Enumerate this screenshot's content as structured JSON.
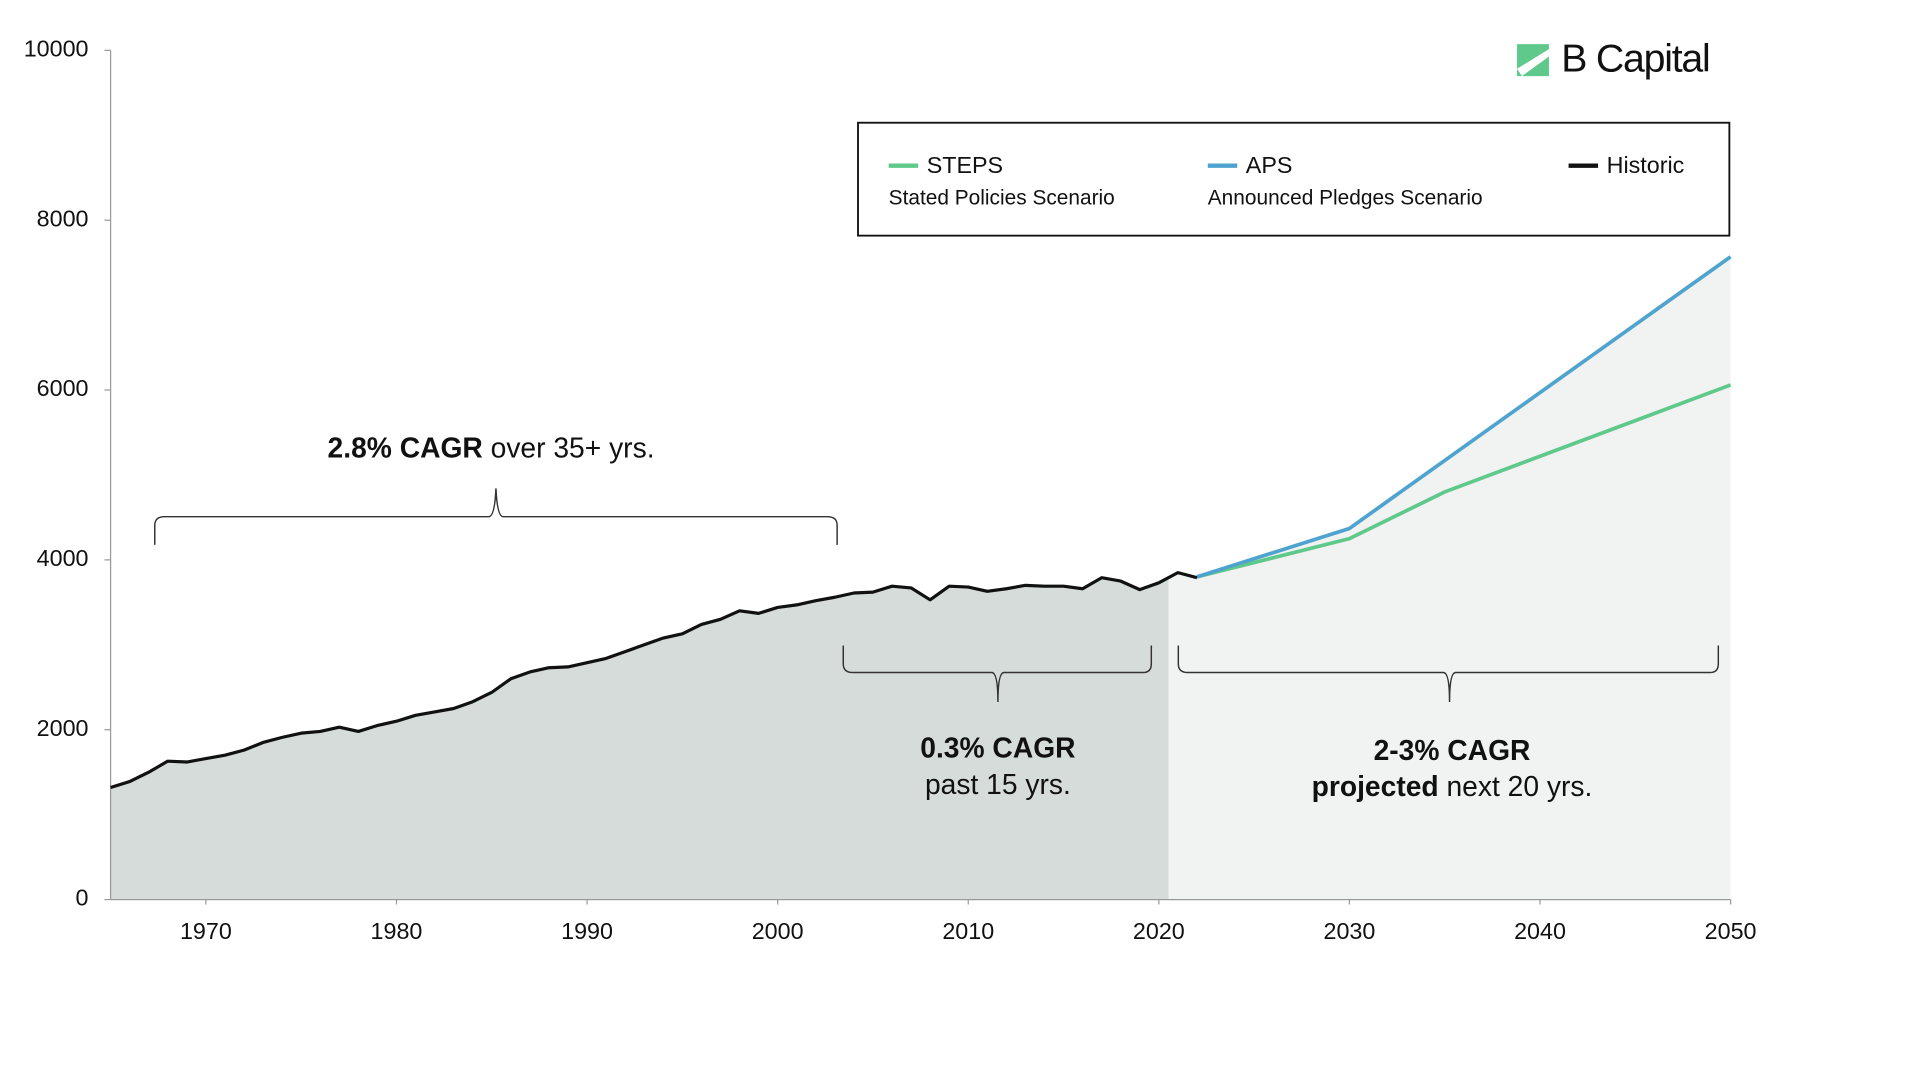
{
  "chart_data": {
    "type": "line",
    "logo": "B Capital",
    "xlim": [
      1965,
      2050
    ],
    "xticks": [
      1970,
      1980,
      1990,
      2000,
      2010,
      2020,
      2030,
      2040,
      2050
    ],
    "ylim": [
      0,
      10000
    ],
    "yticks": [
      0,
      2000,
      4000,
      6000,
      8000,
      10000
    ],
    "series": [
      {
        "name": "STEPS",
        "description": "Stated Policies Scenario",
        "color": "#5ec98a",
        "x": [
          2022,
          2030,
          2035,
          2050
        ],
        "values": [
          3800,
          4250,
          4800,
          6060
        ]
      },
      {
        "name": "APS",
        "description": "Announced Pledges Scenario",
        "color": "#4fa3cf",
        "x": [
          2022,
          2030,
          2050
        ],
        "values": [
          3800,
          4370,
          7570
        ]
      },
      {
        "name": "Historic",
        "color": "#111111",
        "x": [
          1965,
          1966,
          1967,
          1968,
          1969,
          1970,
          1971,
          1972,
          1973,
          1974,
          1975,
          1976,
          1977,
          1978,
          1979,
          1980,
          1981,
          1982,
          1983,
          1984,
          1985,
          1986,
          1987,
          1988,
          1989,
          1990,
          1991,
          1992,
          1993,
          1994,
          1995,
          1996,
          1997,
          1998,
          1999,
          2000,
          2001,
          2002,
          2003,
          2004,
          2005,
          2006,
          2007,
          2008,
          2009,
          2010,
          2011,
          2012,
          2013,
          2014,
          2015,
          2016,
          2017,
          2018,
          2019,
          2020,
          2021,
          2022
        ],
        "values": [
          1320,
          1390,
          1500,
          1630,
          1620,
          1660,
          1700,
          1760,
          1850,
          1910,
          1960,
          1980,
          2030,
          1980,
          2050,
          2100,
          2170,
          2210,
          2250,
          2330,
          2440,
          2600,
          2680,
          2730,
          2740,
          2790,
          2840,
          2920,
          3000,
          3080,
          3130,
          3240,
          3300,
          3400,
          3370,
          3440,
          3470,
          3520,
          3560,
          3610,
          3620,
          3690,
          3670,
          3530,
          3690,
          3680,
          3630,
          3660,
          3700,
          3690,
          3690,
          3660,
          3790,
          3750,
          3650,
          3730,
          3850,
          3790
        ]
      }
    ],
    "annotations": [
      {
        "bold": "2.8% CAGR",
        "text": " over 35+ yrs."
      },
      {
        "bold": "0.3% CAGR",
        "text": "past 15 yrs."
      },
      {
        "bold": "2-3% CAGR",
        "bold2": "projected",
        "text": " next 20 yrs."
      }
    ]
  }
}
